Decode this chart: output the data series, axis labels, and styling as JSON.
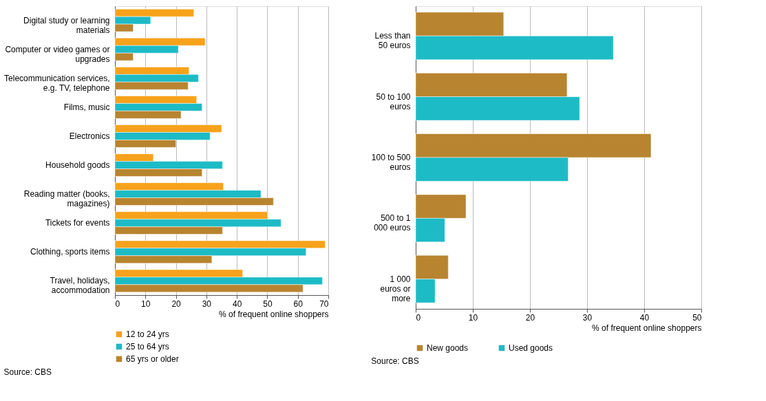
{
  "chart_data": [
    {
      "type": "bar",
      "orientation": "horizontal",
      "categories": [
        "Digital study or learning materials",
        "Computer or video games or upgrades",
        "Telecommunication services, e.g. TV, telephone",
        "Films, music",
        "Electronics",
        "Household goods",
        "Reading matter (books, magazines)",
        "Tickets for events",
        "Clothing, sports items",
        "Travel, holidays, accommodation"
      ],
      "series": [
        {
          "name": "12 to 24 yrs",
          "color": "#f7a21b",
          "values": [
            25.9,
            29.6,
            24.3,
            26.8,
            35,
            12.6,
            35.6,
            50.1,
            69,
            41.9
          ]
        },
        {
          "name": "25 to 64 yrs",
          "color": "#1dbbc6",
          "values": [
            11.7,
            20.8,
            27.4,
            28.6,
            31.2,
            35.3,
            47.9,
            54.5,
            62.7,
            68.1
          ]
        },
        {
          "name": "65 yrs or older",
          "color": "#b8842f",
          "values": [
            6,
            6,
            24,
            21.7,
            20,
            28.6,
            52,
            35.3,
            31.8,
            61.7
          ]
        }
      ],
      "xlabel": "% of  frequent online shoppers",
      "xlim": [
        0,
        70
      ],
      "xticks": [
        0,
        10,
        20,
        30,
        40,
        50,
        60,
        70
      ],
      "grid": "x",
      "legend": "bottom",
      "annotations": [
        "Source: CBS"
      ]
    },
    {
      "type": "bar",
      "orientation": "horizontal",
      "categories": [
        "Less than 50 euros",
        "50 to 100 euros",
        "100 to 500 euros",
        "500 to 1 000 euros",
        "1 000 euros or more"
      ],
      "series": [
        {
          "name": "New goods",
          "color": "#b8842f",
          "values": [
            15.4,
            26.5,
            41.2,
            8.8,
            5.7
          ]
        },
        {
          "name": "Used goods",
          "color": "#1dbbc6",
          "values": [
            34.6,
            28.7,
            26.7,
            5.1,
            3.4
          ]
        }
      ],
      "xlabel": "% of frequent online shoppers",
      "xlim": [
        0,
        50
      ],
      "xticks": [
        0,
        10,
        20,
        30,
        40,
        50
      ],
      "grid": "x",
      "legend": "bottom",
      "annotations": [
        "Source: CBS"
      ]
    }
  ]
}
